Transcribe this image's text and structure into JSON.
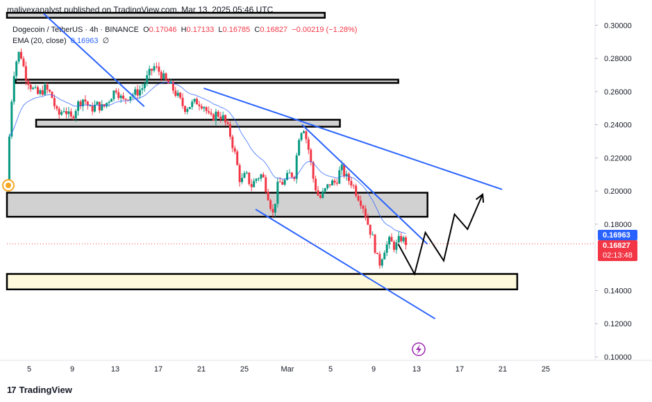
{
  "publisher": "malivexanalyst published on TradingView.com, Mar 13, 2025 05:46 UTC",
  "legend": {
    "symbol": "Dogecoin / TetherUS · 4h · BINANCE",
    "open_label": "O",
    "open": "0.17046",
    "high_label": "H",
    "high": "0.17133",
    "low_label": "L",
    "low": "0.16785",
    "close_label": "C",
    "close": "0.16827",
    "change": "−0.00219 (−1.28%)",
    "ema_label": "EMA (20, close)",
    "ema_value": "0.16963",
    "ema_extra": "∅"
  },
  "footer": {
    "logo": "17",
    "brand": "TradingView"
  },
  "colors": {
    "up": "#089981",
    "down": "#f23645",
    "ema": "#2962ff",
    "trendline": "#2962ff",
    "zone_gray": "#d1d1d1",
    "zone_yellow": "#fff9db",
    "projection": "#000000"
  },
  "chart_data": {
    "type": "candlestick",
    "title": "Dogecoin / TetherUS · 4h · BINANCE",
    "y_ticks": [
      "0.30000",
      "0.28000",
      "0.26000",
      "0.24000",
      "0.22000",
      "0.20000",
      "0.18000",
      "0.14000",
      "0.12000",
      "0.10000"
    ],
    "x_ticks": [
      "5",
      "9",
      "13",
      "17",
      "21",
      "25",
      "Mar",
      "5",
      "9",
      "13",
      "17",
      "21",
      "25"
    ],
    "ylim": [
      0.1,
      0.306
    ],
    "x_range_days": [
      0,
      36
    ],
    "current_price": {
      "label": "0.16827",
      "value": 0.16827,
      "countdown": "02:13:48",
      "color": "#f23645"
    },
    "ema_price": {
      "label": "0.16963",
      "value": 0.16963,
      "color": "#2962ff"
    },
    "price_path": [
      [
        0.0,
        0.2
      ],
      [
        0.3,
        0.245
      ],
      [
        0.7,
        0.275
      ],
      [
        1.2,
        0.285
      ],
      [
        1.7,
        0.27
      ],
      [
        2.3,
        0.262
      ],
      [
        2.9,
        0.258
      ],
      [
        3.5,
        0.262
      ],
      [
        4.1,
        0.258
      ],
      [
        4.7,
        0.245
      ],
      [
        5.3,
        0.25
      ],
      [
        5.9,
        0.243
      ],
      [
        6.5,
        0.252
      ],
      [
        7.1,
        0.256
      ],
      [
        7.7,
        0.249
      ],
      [
        8.3,
        0.252
      ],
      [
        8.9,
        0.25
      ],
      [
        9.5,
        0.256
      ],
      [
        10.1,
        0.262
      ],
      [
        10.7,
        0.254
      ],
      [
        11.3,
        0.258
      ],
      [
        11.9,
        0.259
      ],
      [
        12.5,
        0.262
      ],
      [
        13.1,
        0.27
      ],
      [
        13.6,
        0.275
      ],
      [
        14.1,
        0.272
      ],
      [
        14.7,
        0.266
      ],
      [
        15.2,
        0.263
      ],
      [
        15.8,
        0.257
      ],
      [
        16.4,
        0.25
      ],
      [
        17.0,
        0.252
      ],
      [
        17.6,
        0.254
      ],
      [
        18.2,
        0.252
      ],
      [
        18.8,
        0.243
      ],
      [
        19.4,
        0.247
      ],
      [
        20.0,
        0.244
      ],
      [
        20.6,
        0.235
      ],
      [
        21.1,
        0.222
      ],
      [
        21.6,
        0.205
      ],
      [
        22.1,
        0.21
      ],
      [
        22.6,
        0.203
      ],
      [
        23.1,
        0.208
      ],
      [
        23.6,
        0.21
      ],
      [
        24.1,
        0.199
      ],
      [
        24.6,
        0.186
      ],
      [
        25.1,
        0.205
      ],
      [
        25.6,
        0.205
      ],
      [
        26.1,
        0.21
      ],
      [
        26.6,
        0.21
      ],
      [
        27.0,
        0.233
      ],
      [
        27.4,
        0.24
      ],
      [
        27.9,
        0.225
      ],
      [
        28.4,
        0.205
      ],
      [
        28.9,
        0.195
      ],
      [
        29.4,
        0.2
      ],
      [
        29.9,
        0.205
      ],
      [
        30.4,
        0.205
      ],
      [
        30.9,
        0.214
      ],
      [
        31.4,
        0.208
      ],
      [
        31.9,
        0.205
      ],
      [
        32.4,
        0.198
      ],
      [
        32.9,
        0.192
      ],
      [
        33.4,
        0.18
      ],
      [
        33.9,
        0.17
      ],
      [
        34.4,
        0.155
      ],
      [
        34.9,
        0.165
      ],
      [
        35.4,
        0.17
      ],
      [
        35.9,
        0.166
      ],
      [
        36.4,
        0.172
      ],
      [
        36.9,
        0.169
      ]
    ],
    "candle_count": 168,
    "ema_period": 20,
    "zones": [
      {
        "name": "top-resistance-box",
        "from": 0.3045,
        "to": 0.3075,
        "start_day": 0.0,
        "end_day": 29.4,
        "color": "#d1d1d1"
      },
      {
        "name": "resistance-box",
        "from": 0.2652,
        "to": 0.2672,
        "start_day": 0.8,
        "end_day": 36.2,
        "color": "#d1d1d1"
      },
      {
        "name": "support-resistance-box",
        "from": 0.2388,
        "to": 0.243,
        "start_day": 2.7,
        "end_day": 30.8,
        "color": "#d1d1d1"
      },
      {
        "name": "mid-support-box",
        "from": 0.1845,
        "to": 0.199,
        "start_day": 0.0,
        "end_day": 38.9,
        "color": "#d1d1d1"
      },
      {
        "name": "demand-box",
        "from": 0.1407,
        "to": 0.15,
        "start_day": 0.0,
        "end_day": 47.2,
        "color": "#fff9db"
      }
    ],
    "trendlines": [
      {
        "name": "falling-trendline-early",
        "from": [
          3.4,
          0.307
        ],
        "to": [
          12.7,
          0.251
        ]
      },
      {
        "name": "upper-channel-line",
        "from": [
          18.2,
          0.262
        ],
        "to": [
          45.8,
          0.201
        ]
      },
      {
        "name": "lower-channel-line",
        "from": [
          23.0,
          0.189
        ],
        "to": [
          39.6,
          0.123
        ]
      },
      {
        "name": "wedge-upper-line",
        "from": [
          27.3,
          0.24
        ],
        "to": [
          38.9,
          0.168
        ]
      }
    ],
    "projection_path": [
      [
        36.2,
        0.168
      ],
      [
        37.7,
        0.15
      ],
      [
        38.7,
        0.175
      ],
      [
        40.4,
        0.158
      ],
      [
        41.4,
        0.186
      ],
      [
        42.6,
        0.177
      ],
      [
        44.0,
        0.198
      ]
    ],
    "grid": false,
    "legend_position": "top-left"
  }
}
